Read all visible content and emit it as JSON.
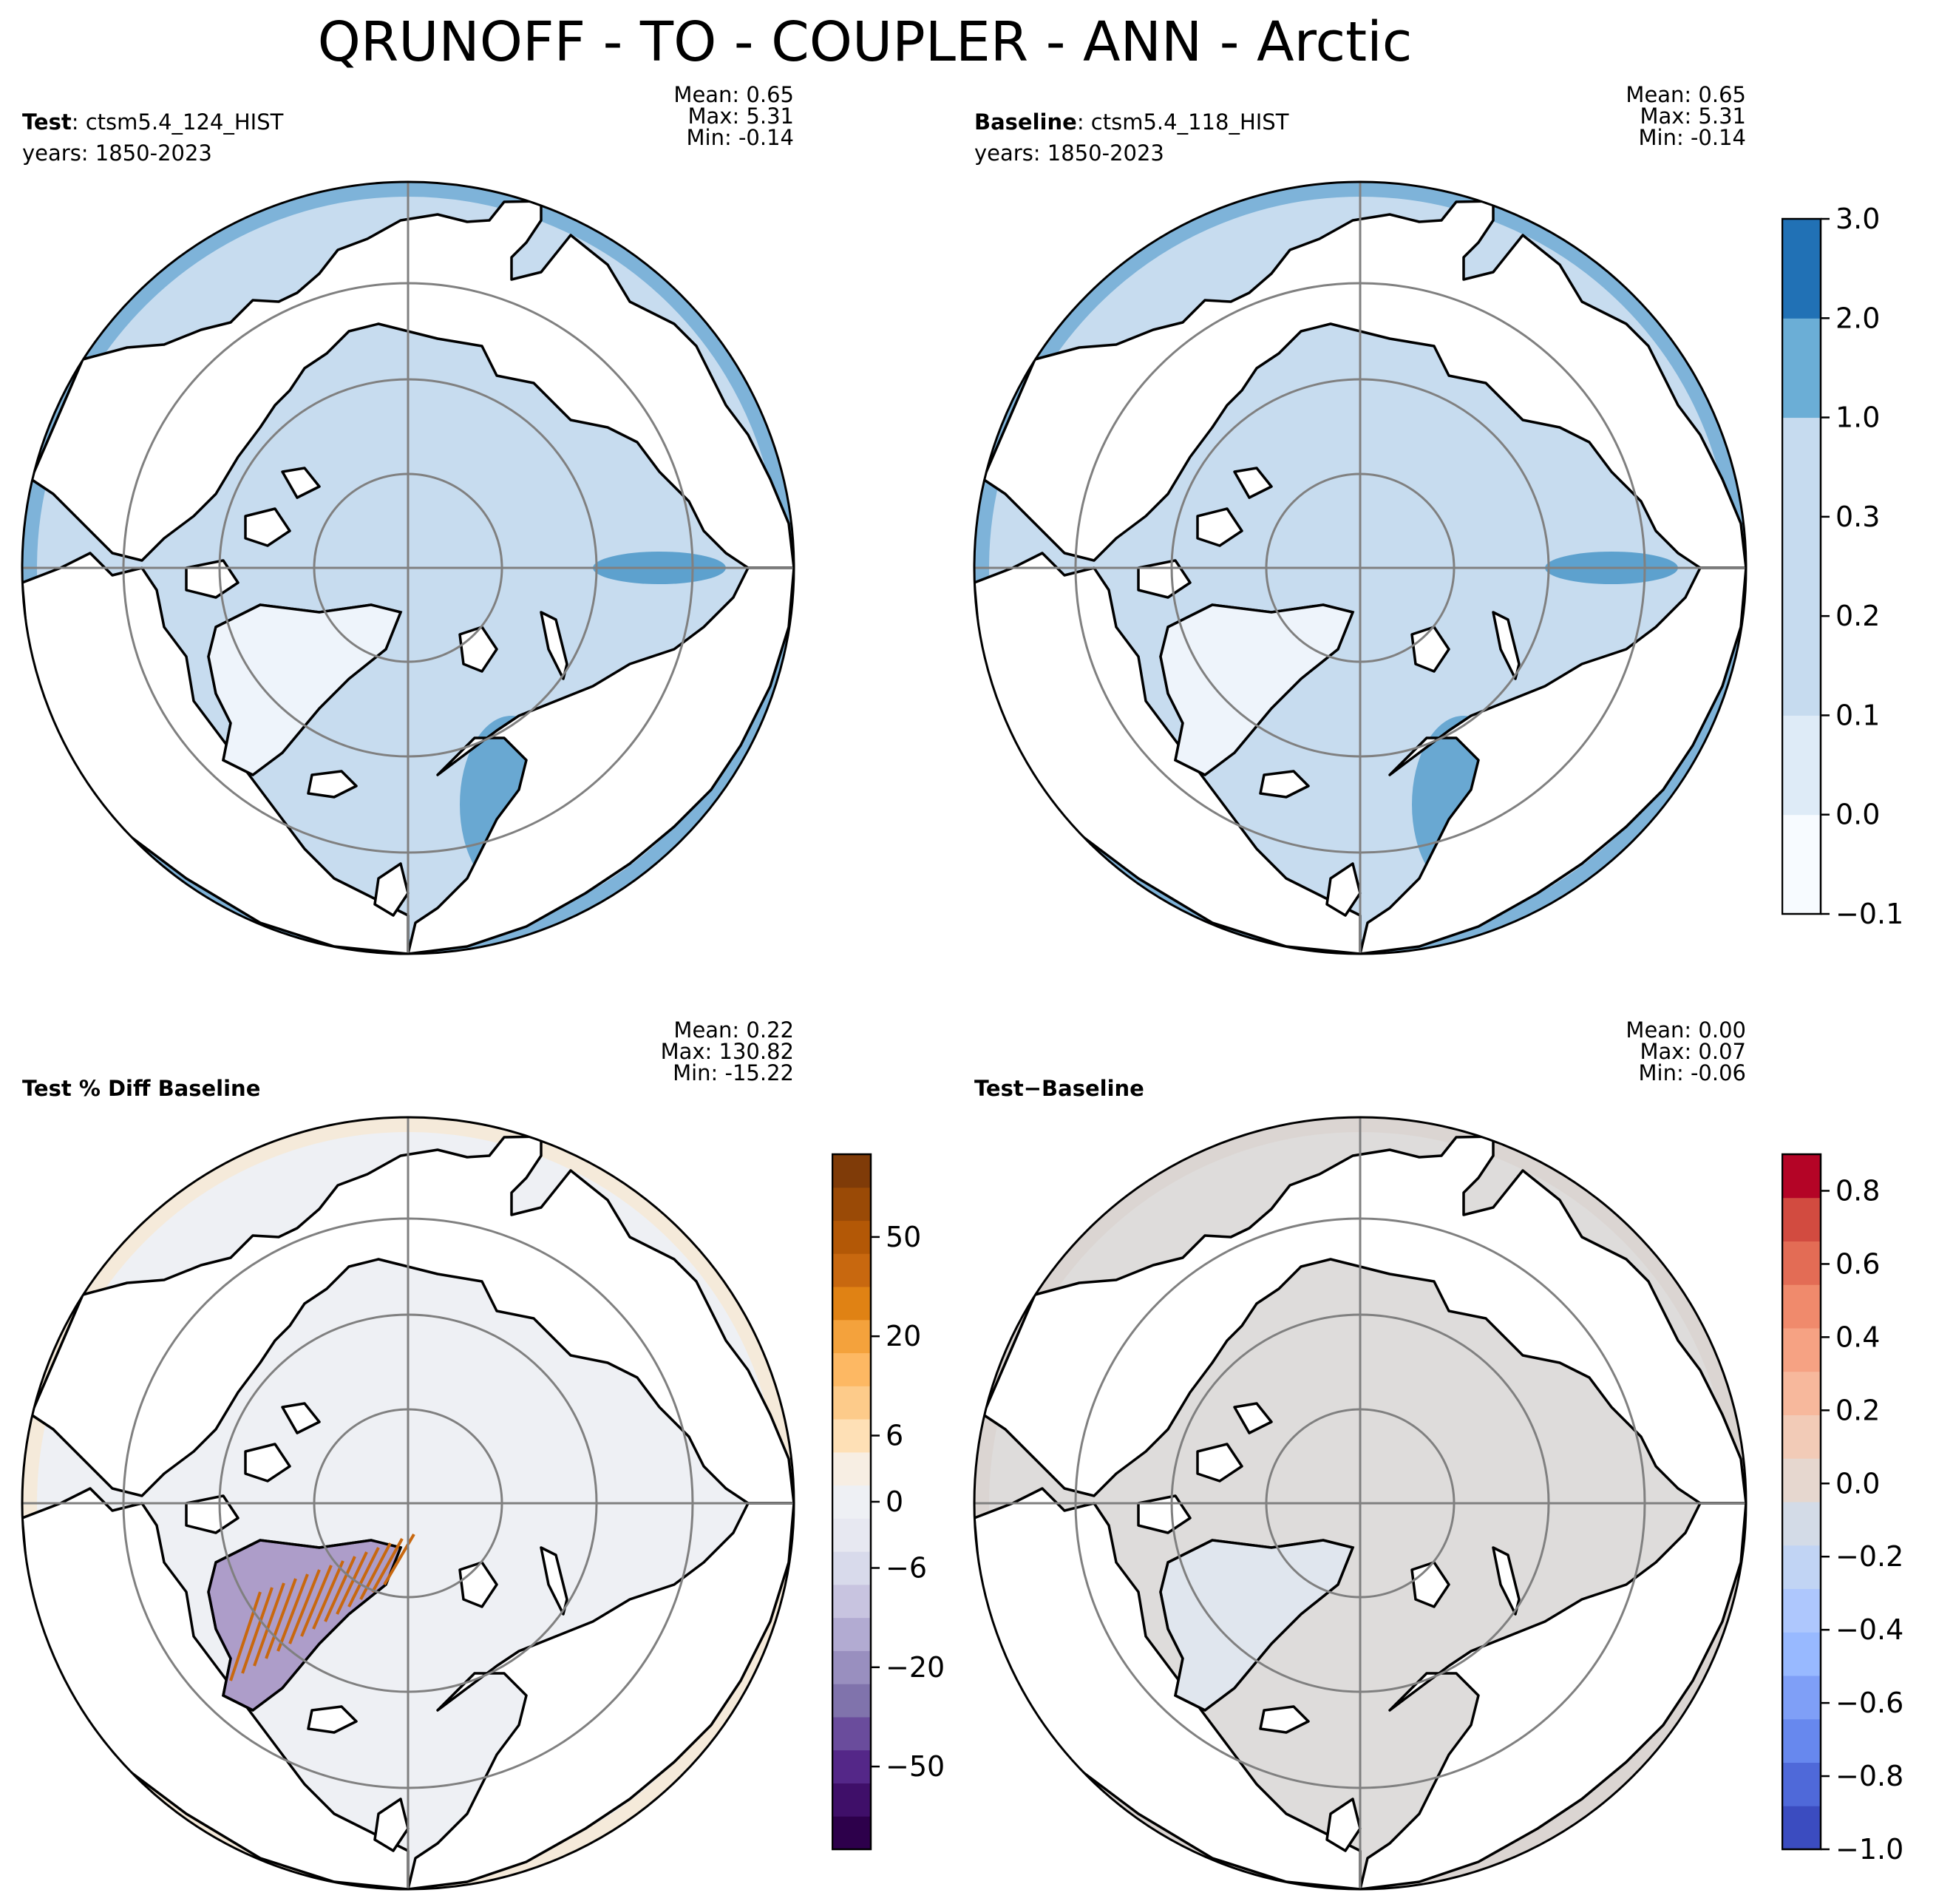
{
  "title": "QRUNOFF - TO - COUPLER - ANN - Arctic",
  "panels": [
    {
      "id": "test",
      "label_bold": "Test",
      "label_rest": ": ctsm5.4_124_HIST",
      "years": "years: 1850-2023",
      "mean": "Mean:  0.65",
      "max": "Max:  5.31",
      "min": "Min: -0.14",
      "ocean_fill": "#c7dcef",
      "land_fill": "#ffffff",
      "tint_color": "#4292c6"
    },
    {
      "id": "baseline",
      "label_bold": "Baseline",
      "label_rest": ": ctsm5.4_118_HIST",
      "years": "years: 1850-2023",
      "mean": "Mean:  0.65",
      "max": "Max:  5.31",
      "min": "Min: -0.14",
      "ocean_fill": "#c7dcef",
      "land_fill": "#ffffff",
      "tint_color": "#4292c6"
    },
    {
      "id": "pctdiff",
      "label_bold": "Test % Diff Baseline",
      "label_rest": "",
      "years": "",
      "mean": "Mean:  0.22",
      "max": "Max: 130.82",
      "min": "Min: -15.22",
      "ocean_fill": "#eef0f4",
      "land_fill": "#ffffff",
      "tint_color": "#fbe5c4"
    },
    {
      "id": "diff",
      "label_bold": "Test",
      "label_rest": "−Baseline",
      "years": "",
      "mean": "Mean:  0.00",
      "max": "Max:  0.07",
      "min": "Min: -0.06",
      "ocean_fill": "#dedcdb",
      "land_fill": "#ffffff",
      "tint_color": "#d9cfca"
    }
  ],
  "colorbars": [
    {
      "id": "cbar-main",
      "colors": [
        "#f7fbff",
        "#deebf7",
        "#c6dbef",
        "#c6dbef",
        "#c6dbef",
        "#6baed6",
        "#2171b5"
      ],
      "tick_labels": [
        "3.0",
        "2.0",
        "1.0",
        "0.3",
        "0.2",
        "0.1",
        "0.0",
        "−0.1"
      ]
    },
    {
      "id": "cbar-pct",
      "colors": [
        "#2d004b",
        "#3f0f69",
        "#542788",
        "#6a4c9c",
        "#8073ac",
        "#998fbf",
        "#b2abd2",
        "#c8c4e0",
        "#d8daeb",
        "#e7e8f1",
        "#eef0f4",
        "#f7eee3",
        "#fee0b6",
        "#fdcb8a",
        "#fdb863",
        "#f4a23c",
        "#e08214",
        "#c8680f",
        "#b35806",
        "#9a4a06",
        "#7f3b08"
      ],
      "tick_labels": [
        "50",
        "20",
        "6",
        "0",
        "−6",
        "−20",
        "−50"
      ]
    },
    {
      "id": "cbar-diff",
      "colors": [
        "#3b4cc0",
        "#4f69d9",
        "#6788ee",
        "#7f9ff7",
        "#98b9ff",
        "#aec7fd",
        "#c1d4f4",
        "#d3dbe7",
        "#e6d7cf",
        "#f2cbb7",
        "#f7b89c",
        "#f6a283",
        "#f08a6c",
        "#e36c55",
        "#d24b40",
        "#b40426"
      ],
      "tick_labels": [
        "0.8",
        "0.6",
        "0.4",
        "0.2",
        "0.0",
        "−0.2",
        "−0.4",
        "−0.6",
        "−0.8",
        "−1.0"
      ]
    }
  ]
}
